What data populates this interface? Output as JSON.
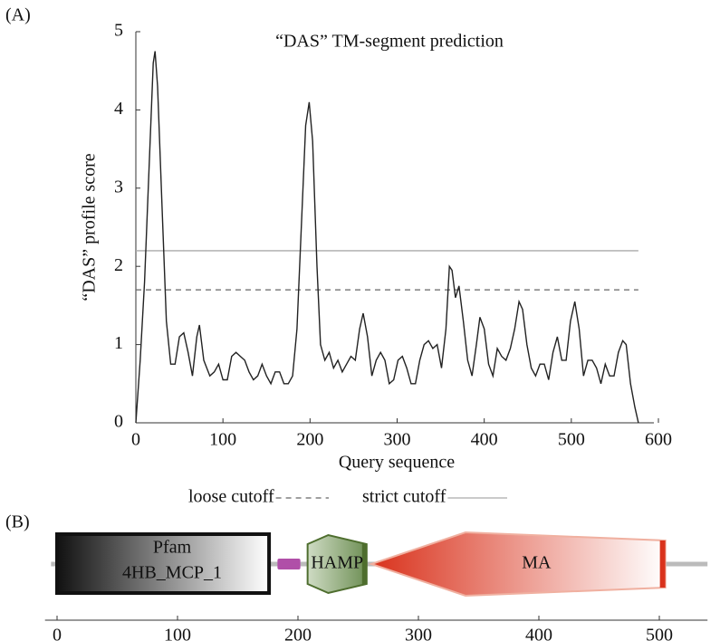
{
  "panels": [
    "(A)",
    "(B)"
  ],
  "chart_data": [
    {
      "type": "line",
      "title": "“DAS” TM-segment prediction",
      "x_label": "Query sequence",
      "y_label": "“DAS” profile score",
      "color": "#222222",
      "x": [
        0,
        5,
        10,
        15,
        20,
        22,
        25,
        30,
        35,
        40,
        45,
        50,
        55,
        60,
        65,
        70,
        73,
        78,
        85,
        90,
        95,
        100,
        105,
        110,
        115,
        120,
        125,
        130,
        135,
        140,
        145,
        150,
        155,
        160,
        165,
        170,
        175,
        180,
        185,
        190,
        195,
        199,
        203,
        208,
        212,
        217,
        222,
        227,
        232,
        237,
        242,
        247,
        252,
        257,
        261,
        266,
        271,
        276,
        281,
        286,
        291,
        296,
        301,
        306,
        311,
        316,
        321,
        326,
        331,
        336,
        341,
        346,
        351,
        356,
        360,
        363,
        367,
        371,
        376,
        381,
        386,
        391,
        395,
        400,
        405,
        410,
        415,
        420,
        425,
        430,
        435,
        440,
        444,
        449,
        454,
        459,
        464,
        469,
        474,
        479,
        484,
        489,
        494,
        499,
        504,
        509,
        514,
        519,
        524,
        529,
        534,
        539,
        544,
        549,
        554,
        559,
        563,
        568,
        573,
        577
      ],
      "values": [
        0,
        0.8,
        1.8,
        3.2,
        4.6,
        4.75,
        4.3,
        2.8,
        1.3,
        0.75,
        0.75,
        1.1,
        1.15,
        0.9,
        0.6,
        1.1,
        1.25,
        0.8,
        0.6,
        0.65,
        0.75,
        0.55,
        0.55,
        0.85,
        0.9,
        0.85,
        0.8,
        0.65,
        0.55,
        0.6,
        0.75,
        0.6,
        0.5,
        0.65,
        0.65,
        0.5,
        0.5,
        0.6,
        1.2,
        2.5,
        3.8,
        4.1,
        3.6,
        2.0,
        1.0,
        0.8,
        0.9,
        0.7,
        0.8,
        0.65,
        0.75,
        0.85,
        0.8,
        1.2,
        1.4,
        1.1,
        0.6,
        0.8,
        0.9,
        0.8,
        0.5,
        0.55,
        0.8,
        0.85,
        0.7,
        0.5,
        0.5,
        0.8,
        1.0,
        1.05,
        0.95,
        1.0,
        0.7,
        1.2,
        2.0,
        1.95,
        1.6,
        1.75,
        1.3,
        0.8,
        0.6,
        1.0,
        1.35,
        1.2,
        0.75,
        0.6,
        0.95,
        0.85,
        0.8,
        0.95,
        1.2,
        1.55,
        1.45,
        1.0,
        0.7,
        0.6,
        0.75,
        0.75,
        0.55,
        0.9,
        1.1,
        0.8,
        0.8,
        1.3,
        1.55,
        1.2,
        0.6,
        0.8,
        0.8,
        0.7,
        0.5,
        0.75,
        0.6,
        0.6,
        0.9,
        1.05,
        1.0,
        0.5,
        0.2,
        0
      ],
      "cutoffs": [
        {
          "name": "loose cutoff",
          "value": 1.7,
          "dashed": true,
          "color": "#666666"
        },
        {
          "name": "strict cutoff",
          "value": 2.2,
          "dashed": false,
          "color": "#aaaaaa"
        }
      ],
      "xlim": [
        0,
        600
      ],
      "xticks": [
        0,
        100,
        200,
        300,
        400,
        500,
        600
      ],
      "ylim": [
        0,
        5
      ],
      "yticks": [
        0,
        1,
        2,
        3,
        4,
        5
      ]
    },
    {
      "type": "domains",
      "backbone": [
        -5,
        540
      ],
      "domains": [
        {
          "start": 0,
          "end": 176,
          "labels": [
            "Pfam",
            "4HB_MCP_1"
          ],
          "shape": "box"
        },
        {
          "start": 183,
          "end": 202,
          "shape": "small",
          "color": "#b04fa8"
        },
        {
          "start": 208,
          "end": 257,
          "labels": [
            "HAMP"
          ],
          "shape": "hamp",
          "color": "#7a9a5e"
        },
        {
          "start": 261,
          "end": 505,
          "labels": [
            "MA"
          ],
          "shape": "ma",
          "color": "#d9321c"
        }
      ],
      "xlim": [
        -10,
        540
      ],
      "xticks": [
        0,
        100,
        200,
        300,
        400,
        500
      ]
    }
  ]
}
